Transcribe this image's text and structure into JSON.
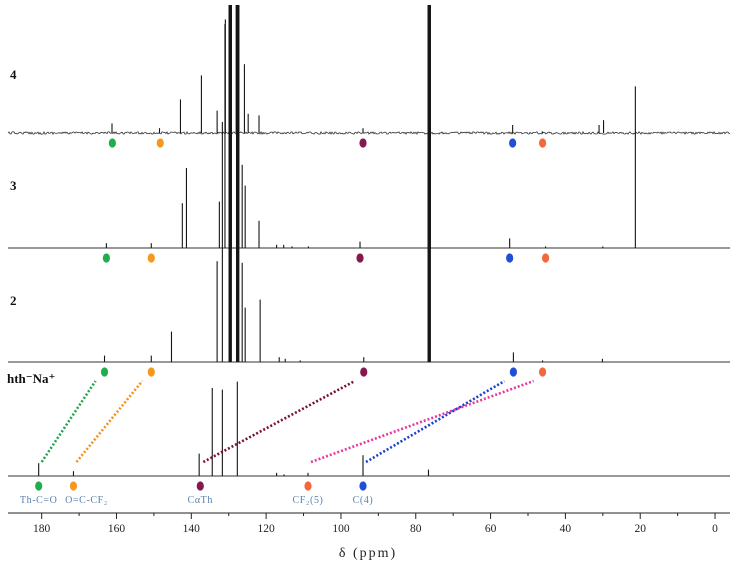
{
  "chart_data": {
    "type": "line",
    "stacked": true,
    "xlabel": "δ (ppm)",
    "xlim": [
      189,
      -4
    ],
    "x_reversed": true,
    "xticks": [
      180,
      160,
      140,
      120,
      100,
      80,
      60,
      40,
      20,
      0
    ],
    "xtick_labels": [
      "180",
      "160",
      "140",
      "120",
      "100",
      "80",
      "60",
      "40",
      "20",
      "0"
    ],
    "grid": false,
    "assignment_groups": [
      {
        "label": "Th-C=O",
        "color": "#1fae4b",
        "connector_color": "#21a54a"
      },
      {
        "label": "O=C-CF₂",
        "color": "#f39a1e",
        "connector_color": "#f0921c"
      },
      {
        "label": "CαTh",
        "color": "#83194f",
        "connector_color": "#7a1230"
      },
      {
        "label": "CF₂(5)",
        "color": "#f2673b",
        "connector_color": "#e8399b"
      },
      {
        "label": "C(4)",
        "color": "#1e4fd6",
        "connector_color": "#1b3fcf"
      }
    ],
    "series": [
      {
        "name": "4",
        "noisy_baseline": true,
        "peaks": [
          {
            "ppm": 161.2,
            "intensity": 6
          },
          {
            "ppm": 148.5,
            "intensity": 3
          },
          {
            "ppm": 142.9,
            "intensity": 21
          },
          {
            "ppm": 137.3,
            "intensity": 36
          },
          {
            "ppm": 133.1,
            "intensity": 14
          },
          {
            "ppm": 130.9,
            "intensity": 71
          },
          {
            "ppm": 129.6,
            "off_scale": true
          },
          {
            "ppm": 127.7,
            "off_scale": true
          },
          {
            "ppm": 125.8,
            "intensity": 43
          },
          {
            "ppm": 124.8,
            "intensity": 12
          },
          {
            "ppm": 121.9,
            "intensity": 11
          },
          {
            "ppm": 94.1,
            "intensity": 3
          },
          {
            "ppm": 76.4,
            "off_scale": true
          },
          {
            "ppm": 54.1,
            "intensity": 5
          },
          {
            "ppm": 46.2,
            "intensity": 1
          },
          {
            "ppm": 31.0,
            "intensity": 5
          },
          {
            "ppm": 29.8,
            "intensity": 8
          }
        ],
        "assignments": [
          {
            "group": 0,
            "ppm": 161.1
          },
          {
            "group": 1,
            "ppm": 148.3
          },
          {
            "group": 2,
            "ppm": 94.1
          },
          {
            "group": 4,
            "ppm": 54.1
          },
          {
            "group": 3,
            "ppm": 46.1
          }
        ]
      },
      {
        "name": "3",
        "noisy_baseline": false,
        "peaks": [
          {
            "ppm": 162.7,
            "intensity": 3
          },
          {
            "ppm": 150.7,
            "intensity": 3
          },
          {
            "ppm": 142.4,
            "intensity": 28
          },
          {
            "ppm": 141.3,
            "intensity": 50
          },
          {
            "ppm": 132.5,
            "intensity": 29
          },
          {
            "ppm": 131.0,
            "intensity": 140
          },
          {
            "ppm": 129.6,
            "off_scale": true
          },
          {
            "ppm": 127.6,
            "off_scale": true
          },
          {
            "ppm": 126.4,
            "intensity": 52
          },
          {
            "ppm": 125.6,
            "intensity": 39
          },
          {
            "ppm": 121.9,
            "intensity": 17
          },
          {
            "ppm": 117.2,
            "intensity": 2
          },
          {
            "ppm": 115.3,
            "intensity": 2
          },
          {
            "ppm": 113.1,
            "intensity": 1
          },
          {
            "ppm": 108.7,
            "intensity": 1
          },
          {
            "ppm": 94.9,
            "intensity": 4
          },
          {
            "ppm": 76.4,
            "off_scale": true
          },
          {
            "ppm": 54.9,
            "intensity": 6
          },
          {
            "ppm": 45.3,
            "intensity": 1
          },
          {
            "ppm": 30.0,
            "intensity": 1
          },
          {
            "ppm": 21.3,
            "intensity": 101
          }
        ],
        "assignments": [
          {
            "group": 0,
            "ppm": 162.7
          },
          {
            "group": 1,
            "ppm": 150.7
          },
          {
            "group": 2,
            "ppm": 94.9
          },
          {
            "group": 4,
            "ppm": 54.9
          },
          {
            "group": 3,
            "ppm": 45.3
          }
        ]
      },
      {
        "name": "2",
        "noisy_baseline": false,
        "peaks": [
          {
            "ppm": 163.2,
            "intensity": 4
          },
          {
            "ppm": 150.7,
            "intensity": 4
          },
          {
            "ppm": 145.3,
            "intensity": 19
          },
          {
            "ppm": 133.1,
            "intensity": 63
          },
          {
            "ppm": 131.7,
            "intensity": 150
          },
          {
            "ppm": 129.6,
            "off_scale": true
          },
          {
            "ppm": 127.6,
            "off_scale": true
          },
          {
            "ppm": 126.4,
            "intensity": 62
          },
          {
            "ppm": 125.6,
            "intensity": 34
          },
          {
            "ppm": 121.6,
            "intensity": 39
          },
          {
            "ppm": 116.5,
            "intensity": 3
          },
          {
            "ppm": 114.9,
            "intensity": 2
          },
          {
            "ppm": 110.9,
            "intensity": 1
          },
          {
            "ppm": 93.9,
            "intensity": 3
          },
          {
            "ppm": 76.4,
            "off_scale": true
          },
          {
            "ppm": 53.9,
            "intensity": 6
          },
          {
            "ppm": 46.1,
            "intensity": 1
          },
          {
            "ppm": 30.1,
            "intensity": 2
          }
        ],
        "assignments": [
          {
            "group": 0,
            "ppm": 163.2
          },
          {
            "group": 1,
            "ppm": 150.7
          },
          {
            "group": 2,
            "ppm": 93.9
          },
          {
            "group": 4,
            "ppm": 53.9
          },
          {
            "group": 3,
            "ppm": 46.1
          }
        ]
      },
      {
        "name": "hth⁻Na⁺",
        "noisy_baseline": false,
        "peaks": [
          {
            "ppm": 180.8,
            "intensity": 8
          },
          {
            "ppm": 171.5,
            "intensity": 3
          },
          {
            "ppm": 137.9,
            "intensity": 14
          },
          {
            "ppm": 134.4,
            "intensity": 55
          },
          {
            "ppm": 131.7,
            "intensity": 54
          },
          {
            "ppm": 127.7,
            "intensity": 59
          },
          {
            "ppm": 117.2,
            "intensity": 2
          },
          {
            "ppm": 115.2,
            "intensity": 1
          },
          {
            "ppm": 108.8,
            "intensity": 2
          },
          {
            "ppm": 94.1,
            "intensity": 13
          },
          {
            "ppm": 76.6,
            "intensity": 4
          }
        ],
        "assignments": [
          {
            "group": 0,
            "ppm": 180.8
          },
          {
            "group": 1,
            "ppm": 171.5
          },
          {
            "group": 2,
            "ppm": 137.6
          },
          {
            "group": 3,
            "ppm": 108.8
          },
          {
            "group": 4,
            "ppm": 94.1
          }
        ],
        "show_assignment_labels": true
      }
    ],
    "connectors": [
      {
        "group": 0,
        "from": 3,
        "to": 2
      },
      {
        "group": 1,
        "from": 3,
        "to": 2
      },
      {
        "group": 2,
        "from": 3,
        "to": 2
      },
      {
        "group": 3,
        "from": 3,
        "to": 2
      },
      {
        "group": 4,
        "from": 3,
        "to": 2
      }
    ]
  }
}
